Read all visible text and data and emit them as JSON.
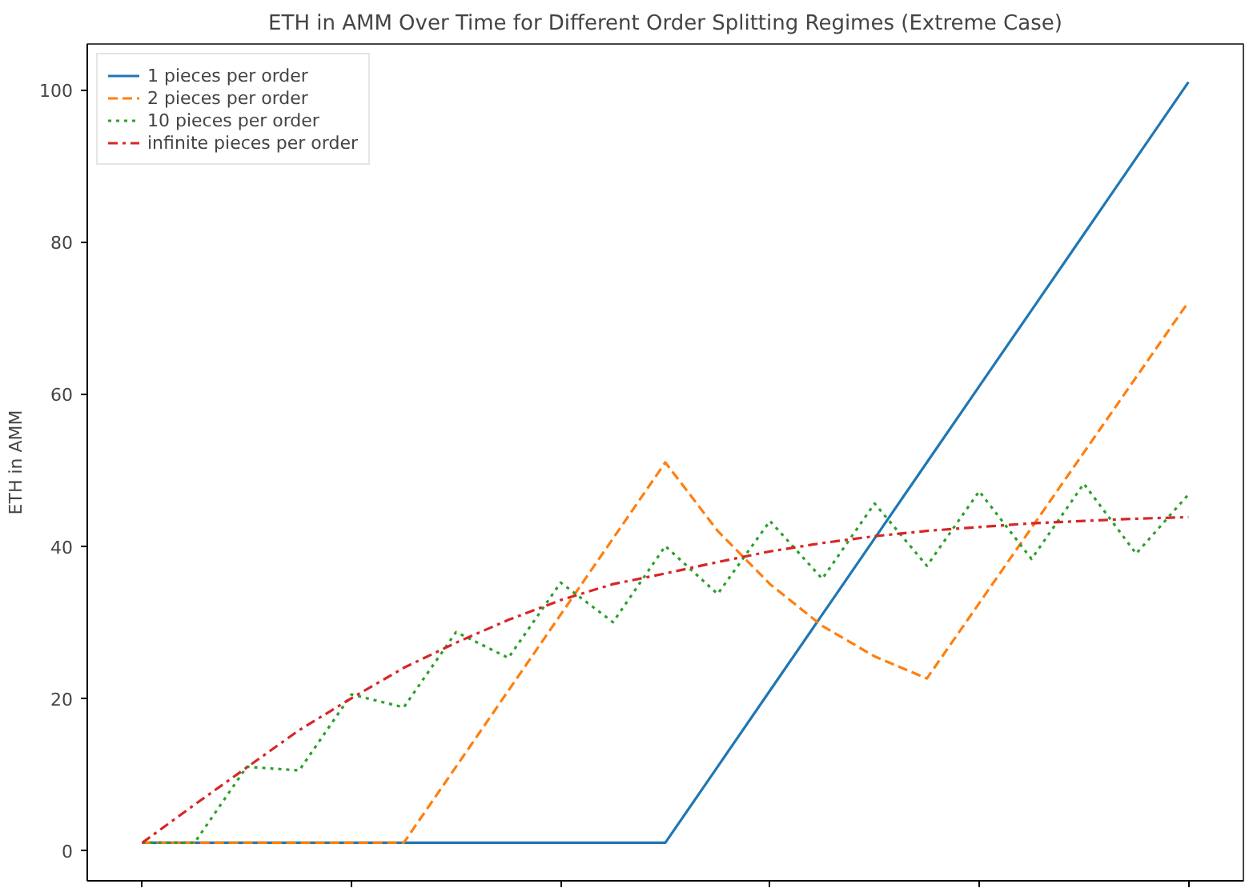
{
  "chart_data": {
    "type": "line",
    "title": "ETH in AMM Over Time for Different Order Splitting Regimes (Extreme Case)",
    "ylabel": "ETH in AMM",
    "categories": [
      null,
      null,
      null,
      null,
      null,
      null,
      null,
      null,
      null,
      null,
      null,
      null,
      null,
      null,
      null,
      null,
      null,
      null,
      null,
      null,
      null
    ],
    "ylim": [
      -4,
      106
    ],
    "yticks": [
      0,
      20,
      40,
      60,
      80,
      100
    ],
    "grid": false,
    "legend": "top left",
    "series": [
      {
        "name": "1 pieces per order",
        "color": "#1f77b4",
        "line_style": "solid",
        "values": [
          1,
          1,
          1,
          1,
          1,
          1,
          1,
          1,
          1,
          1,
          1,
          11,
          21,
          31,
          41,
          51,
          61,
          71,
          81,
          91,
          101
        ]
      },
      {
        "name": "2 pieces per order",
        "color": "#ff7f0e",
        "line_style": "dashed",
        "values": [
          1,
          1,
          1,
          1,
          1,
          1,
          11,
          21,
          31,
          41,
          51,
          42,
          35,
          29.5,
          25.5,
          22.6,
          32.5,
          42.4,
          52.3,
          62.2,
          72.1
        ]
      },
      {
        "name": "10 pieces per order",
        "color": "#2ca02c",
        "line_style": "dotted",
        "values": [
          1,
          1,
          11,
          10.5,
          20.5,
          18.8,
          28.7,
          25.3,
          35.2,
          30,
          40,
          33.7,
          43.3,
          35.7,
          45.6,
          37.4,
          47.2,
          38.3,
          48.2,
          39,
          46.8
        ]
      },
      {
        "name": "infinite pieces per order",
        "color": "#d62728",
        "line_style": "dashdot",
        "values": [
          1,
          6,
          10.9,
          15.8,
          20,
          24,
          27.3,
          30.3,
          32.9,
          35,
          36.4,
          37.9,
          39.3,
          40.4,
          41.3,
          42,
          42.5,
          43,
          43.3,
          43.6,
          43.8
        ]
      }
    ]
  }
}
